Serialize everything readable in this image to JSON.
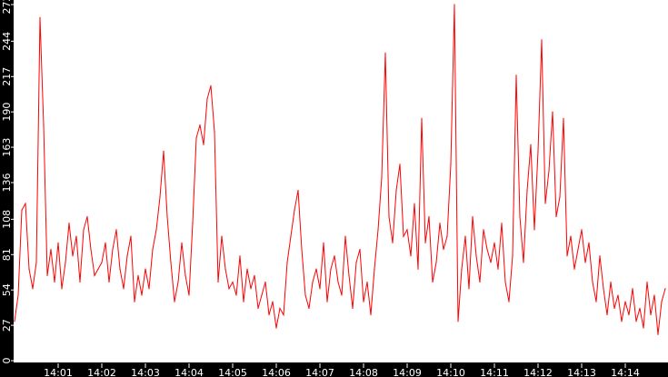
{
  "chart_data": {
    "type": "line",
    "title": "",
    "xlabel": "",
    "ylabel": "",
    "x_start": "14:00:00",
    "x_end": "14:15:00",
    "sample_interval_seconds": 5,
    "ylim": [
      0,
      272
    ],
    "y_ticks": [
      "0",
      "27",
      "54",
      "81",
      "108",
      "136",
      "163",
      "190",
      "217",
      "244",
      "272"
    ],
    "x_ticks": [
      "14:01",
      "14:02",
      "14:03",
      "14:04",
      "14:05",
      "14:06",
      "14:07",
      "14:08",
      "14:09",
      "14:10",
      "14:11",
      "14:12",
      "14:13",
      "14:14"
    ],
    "grid": false,
    "background": "#ffffff",
    "axis_background": "#000000",
    "series": [
      {
        "color": "#ff0000",
        "values": [
          30,
          50,
          115,
          120,
          70,
          55,
          75,
          262,
          180,
          65,
          85,
          60,
          90,
          55,
          75,
          105,
          80,
          95,
          60,
          100,
          110,
          85,
          65,
          70,
          75,
          90,
          60,
          85,
          100,
          70,
          55,
          80,
          95,
          45,
          65,
          50,
          70,
          55,
          85,
          100,
          125,
          160,
          110,
          75,
          45,
          60,
          90,
          65,
          50,
          105,
          170,
          180,
          165,
          200,
          210,
          175,
          60,
          95,
          70,
          55,
          60,
          50,
          80,
          45,
          70,
          55,
          65,
          40,
          50,
          60,
          35,
          45,
          25,
          40,
          35,
          75,
          95,
          115,
          130,
          85,
          50,
          40,
          60,
          70,
          55,
          90,
          45,
          70,
          80,
          60,
          50,
          95,
          65,
          40,
          75,
          85,
          45,
          60,
          35,
          70,
          100,
          140,
          235,
          110,
          90,
          130,
          150,
          95,
          100,
          80,
          120,
          70,
          185,
          90,
          110,
          60,
          75,
          105,
          85,
          95,
          150,
          272,
          30,
          70,
          95,
          55,
          110,
          80,
          60,
          100,
          85,
          75,
          90,
          70,
          105,
          60,
          45,
          80,
          218,
          110,
          75,
          130,
          165,
          100,
          160,
          245,
          120,
          145,
          190,
          110,
          125,
          185,
          80,
          95,
          70,
          85,
          100,
          75,
          90,
          60,
          45,
          80,
          55,
          35,
          60,
          40,
          50,
          30,
          45,
          35,
          55,
          30,
          40,
          25,
          60,
          35,
          50,
          20,
          45,
          55
        ]
      }
    ]
  }
}
